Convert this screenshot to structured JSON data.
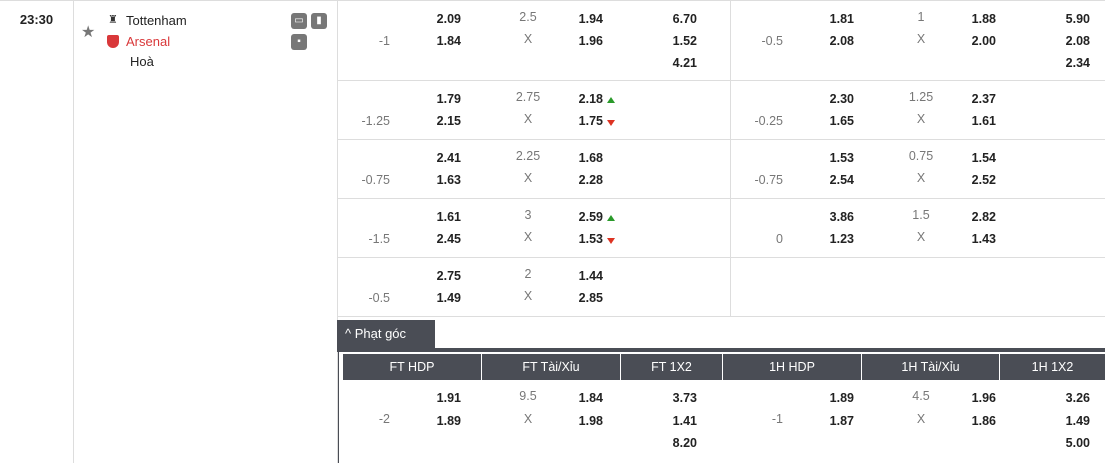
{
  "match": {
    "time": "23:30",
    "home": "Tottenham",
    "away": "Arsenal",
    "draw": "Hoà",
    "colors": {
      "away": "#d9383a",
      "accent": "#4a4d55"
    },
    "icons": [
      "star-icon",
      "tv-icon",
      "stats-icon",
      "lineup-icon"
    ]
  },
  "rows": [
    {
      "l": {
        "hdp": "-1",
        "h1": "2.09",
        "h2": "1.84",
        "ou": "2.5",
        "x": "X",
        "o1": "1.94",
        "o2": "1.96",
        "x1": "6.70",
        "x2": "1.52",
        "x3": "4.21"
      },
      "r": {
        "hdp": "-0.5",
        "h1": "1.81",
        "h2": "2.08",
        "ou": "1",
        "x": "X",
        "o1": "1.88",
        "o2": "2.00",
        "x1": "5.90",
        "x2": "2.08",
        "x3": "2.34"
      }
    },
    {
      "l": {
        "hdp": "-1.25",
        "h1": "1.79",
        "h2": "2.15",
        "ou": "2.75",
        "x": "X",
        "o1": "2.18",
        "o2": "1.75",
        "a1": "up",
        "a2": "down"
      },
      "r": {
        "hdp": "-0.25",
        "h1": "2.30",
        "h2": "1.65",
        "ou": "1.25",
        "x": "X",
        "o1": "2.37",
        "o2": "1.61"
      }
    },
    {
      "l": {
        "hdp": "-0.75",
        "h1": "2.41",
        "h2": "1.63",
        "ou": "2.25",
        "x": "X",
        "o1": "1.68",
        "o2": "2.28"
      },
      "r": {
        "hdp": "-0.75",
        "h1": "1.53",
        "h2": "2.54",
        "ou": "0.75",
        "x": "X",
        "o1": "1.54",
        "o2": "2.52"
      }
    },
    {
      "l": {
        "hdp": "-1.5",
        "h1": "1.61",
        "h2": "2.45",
        "ou": "3",
        "x": "X",
        "o1": "2.59",
        "o2": "1.53",
        "a1": "up",
        "a2": "down"
      },
      "r": {
        "hdp": "0",
        "h1": "3.86",
        "h2": "1.23",
        "ou": "1.5",
        "x": "X",
        "o1": "2.82",
        "o2": "1.43"
      }
    },
    {
      "l": {
        "hdp": "-0.5",
        "h1": "2.75",
        "h2": "1.49",
        "ou": "2",
        "x": "X",
        "o1": "1.44",
        "o2": "2.85"
      },
      "r": null
    }
  ],
  "corner": {
    "tab": "Phạt góc",
    "headers": [
      "FT HDP",
      "FT Tài/Xỉu",
      "FT 1X2",
      "1H HDP",
      "1H Tài/Xỉu",
      "1H 1X2"
    ],
    "l": {
      "hdp": "-2",
      "h1": "1.91",
      "h2": "1.89",
      "ou": "9.5",
      "x": "X",
      "o1": "1.84",
      "o2": "1.98",
      "x1": "3.73",
      "x2": "1.41",
      "x3": "8.20"
    },
    "r": {
      "hdp": "-1",
      "h1": "1.89",
      "h2": "1.87",
      "ou": "4.5",
      "x": "X",
      "o1": "1.96",
      "o2": "1.86",
      "x1": "3.26",
      "x2": "1.49",
      "x3": "5.00"
    }
  }
}
